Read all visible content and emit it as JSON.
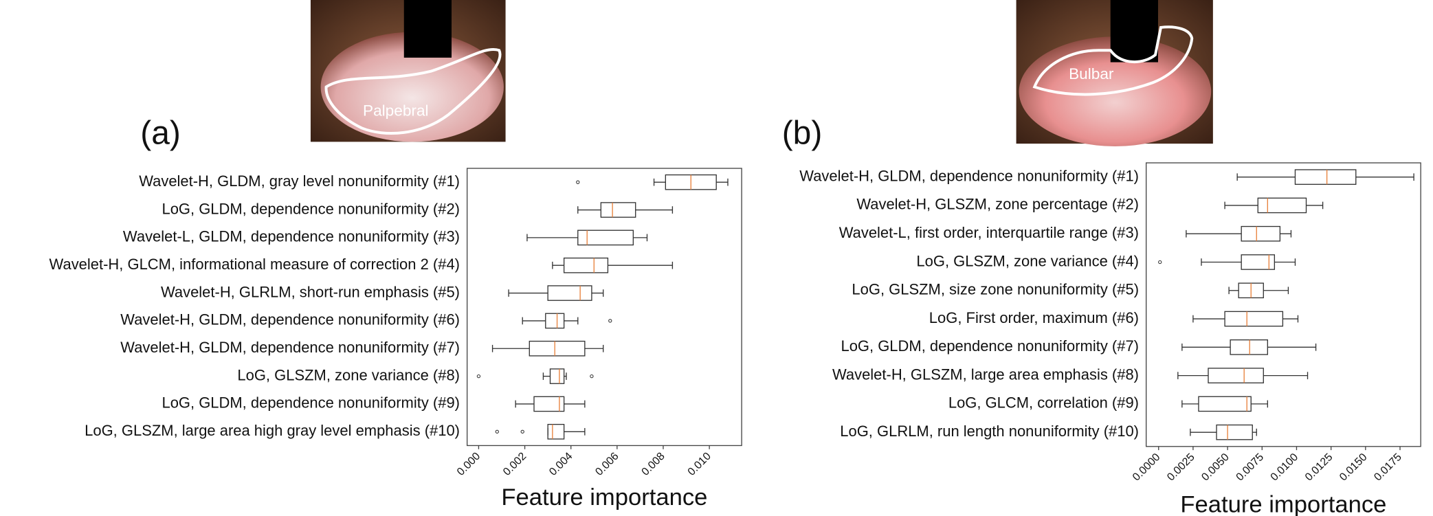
{
  "chart_data": [
    {
      "type": "box",
      "panel_label": "(a)",
      "image_label": "Palpebral",
      "xlabel": "Feature importance",
      "categories": [
        "Wavelet-H, GLDM, gray level nonuniformity (#1)",
        "LoG, GLDM, dependence nonuniformity (#2)",
        "Wavelet-L, GLDM, dependence nonuniformity (#3)",
        "Wavelet-H, GLCM, informational measure of correction 2 (#4)",
        "Wavelet-H, GLRLM, short-run emphasis (#5)",
        "Wavelet-H, GLDM, dependence nonuniformity (#6)",
        "Wavelet-H, GLDM, dependence nonuniformity (#7)",
        "LoG, GLSZM, zone variance (#8)",
        "LoG, GLDM, dependence nonuniformity (#9)",
        "LoG, GLSZM, large area high gray level emphasis (#10)"
      ],
      "boxes": [
        {
          "min": 0.0076,
          "q1": 0.0081,
          "median": 0.0092,
          "q3": 0.0103,
          "max": 0.0108,
          "outliers": [
            0.0043
          ]
        },
        {
          "min": 0.0043,
          "q1": 0.0053,
          "median": 0.0058,
          "q3": 0.0068,
          "max": 0.0084,
          "outliers": []
        },
        {
          "min": 0.0021,
          "q1": 0.0043,
          "median": 0.0047,
          "q3": 0.0067,
          "max": 0.0073,
          "outliers": []
        },
        {
          "min": 0.0032,
          "q1": 0.0037,
          "median": 0.005,
          "q3": 0.0056,
          "max": 0.0084,
          "outliers": []
        },
        {
          "min": 0.0013,
          "q1": 0.003,
          "median": 0.0044,
          "q3": 0.0049,
          "max": 0.0054,
          "outliers": []
        },
        {
          "min": 0.0019,
          "q1": 0.0029,
          "median": 0.0034,
          "q3": 0.0037,
          "max": 0.0043,
          "outliers": [
            0.0057
          ]
        },
        {
          "min": 0.0006,
          "q1": 0.0022,
          "median": 0.0033,
          "q3": 0.0046,
          "max": 0.0054,
          "outliers": []
        },
        {
          "min": 0.0028,
          "q1": 0.0031,
          "median": 0.0035,
          "q3": 0.0037,
          "max": 0.0038,
          "outliers": [
            0,
            0.0049
          ]
        },
        {
          "min": 0.0016,
          "q1": 0.0024,
          "median": 0.0035,
          "q3": 0.0037,
          "max": 0.0046,
          "outliers": []
        },
        {
          "min": 0.003,
          "q1": 0.003,
          "median": 0.0032,
          "q3": 0.0037,
          "max": 0.0046,
          "outliers": [
            0.0008,
            0.0019
          ]
        }
      ],
      "color": "#333333",
      "median_color": "#e8803a",
      "xlim": [
        -0.0005,
        0.0114
      ],
      "xticks": [
        {
          "value": 0,
          "label": "0.000"
        },
        0.002,
        0.004,
        0.006,
        0.008,
        {
          "value": 0.01,
          "label": "0.010"
        }
      ]
    },
    {
      "type": "box",
      "panel_label": "(b)",
      "image_label": "Bulbar",
      "xlabel": "Feature importance",
      "categories": [
        "Wavelet-H, GLDM, dependence nonuniformity (#1)",
        "Wavelet-H, GLSZM, zone percentage (#2)",
        "Wavelet-L, first order, interquartile range (#3)",
        "LoG, GLSZM, zone variance (#4)",
        "LoG, GLSZM, size zone nonuniformity (#5)",
        "LoG, First order, maximum (#6)",
        "LoG, GLDM, dependence nonuniformity (#7)",
        "Wavelet-H, GLSZM, large area emphasis (#8)",
        "LoG, GLCM, correlation (#9)",
        "LoG, GLRLM, run length nonuniformity (#10)"
      ],
      "boxes": [
        {
          "min": 0.0057,
          "q1": 0.0099,
          "median": 0.0122,
          "q3": 0.0143,
          "max": 0.0185,
          "outliers": []
        },
        {
          "min": 0.0048,
          "q1": 0.0072,
          "median": 0.0079,
          "q3": 0.0107,
          "max": 0.0119,
          "outliers": []
        },
        {
          "min": 0.002,
          "q1": 0.006,
          "median": 0.0071,
          "q3": 0.0088,
          "max": 0.0096,
          "outliers": []
        },
        {
          "min": 0.0031,
          "q1": 0.006,
          "median": 0.008,
          "q3": 0.0084,
          "max": 0.0099,
          "outliers": [
            0.0001
          ]
        },
        {
          "min": 0.0051,
          "q1": 0.0058,
          "median": 0.0067,
          "q3": 0.0076,
          "max": 0.0094,
          "outliers": []
        },
        {
          "min": 0.0025,
          "q1": 0.0048,
          "median": 0.0064,
          "q3": 0.009,
          "max": 0.0101,
          "outliers": []
        },
        {
          "min": 0.0017,
          "q1": 0.0052,
          "median": 0.0066,
          "q3": 0.0079,
          "max": 0.0114,
          "outliers": []
        },
        {
          "min": 0.0014,
          "q1": 0.0036,
          "median": 0.0062,
          "q3": 0.0076,
          "max": 0.0108,
          "outliers": []
        },
        {
          "min": 0.0017,
          "q1": 0.0029,
          "median": 0.0064,
          "q3": 0.0067,
          "max": 0.0079,
          "outliers": []
        },
        {
          "min": 0.0023,
          "q1": 0.0042,
          "median": 0.005,
          "q3": 0.0068,
          "max": 0.0071,
          "outliers": []
        }
      ],
      "color": "#333333",
      "median_color": "#e8803a",
      "xlim": [
        -0.0009,
        0.019
      ],
      "xticks": [
        {
          "value": 0,
          "label": "0.0000"
        },
        0.0025,
        {
          "value": 0.005,
          "label": "0.0050"
        },
        0.0075,
        {
          "value": 0.01,
          "label": "0.0100"
        },
        0.0125,
        {
          "value": 0.015,
          "label": "0.0150"
        },
        0.0175
      ]
    }
  ]
}
